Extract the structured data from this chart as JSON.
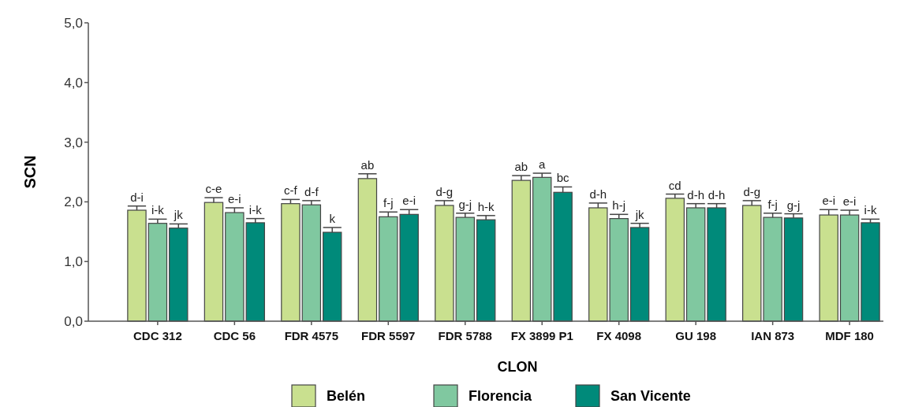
{
  "chart_data": {
    "type": "bar",
    "xlabel": "CLON",
    "ylabel": "SCN",
    "categories": [
      "CDC 312",
      "CDC 56",
      "FDR 4575",
      "FDR 5597",
      "FDR 5788",
      "FX 3899 P1",
      "FX 4098",
      "GU 198",
      "IAN 873",
      "MDF 180"
    ],
    "series": [
      {
        "name": "Belén",
        "color": "#c9e08f",
        "values": [
          1.86,
          1.99,
          1.97,
          2.39,
          1.94,
          2.36,
          1.9,
          2.06,
          1.94,
          1.78
        ],
        "errors": [
          0.07,
          0.08,
          0.07,
          0.08,
          0.08,
          0.08,
          0.08,
          0.07,
          0.08,
          0.09
        ],
        "value_labels": [
          "d-i",
          "c-e",
          "c-f",
          "ab",
          "d-g",
          "ab",
          "d-h",
          "cd",
          "d-g",
          "e-i"
        ]
      },
      {
        "name": "Florencia",
        "color": "#80c8a0",
        "values": [
          1.64,
          1.82,
          1.95,
          1.75,
          1.74,
          2.41,
          1.72,
          1.9,
          1.74,
          1.78
        ],
        "errors": [
          0.07,
          0.08,
          0.07,
          0.08,
          0.07,
          0.07,
          0.07,
          0.07,
          0.07,
          0.08
        ],
        "value_labels": [
          "i-k",
          "e-i",
          "d-f",
          "f-j",
          "g-j",
          "a",
          "h-j",
          "d-h",
          "f-j",
          "e-i"
        ]
      },
      {
        "name": "San Vicente",
        "color": "#008a7a",
        "values": [
          1.56,
          1.65,
          1.49,
          1.79,
          1.7,
          2.16,
          1.57,
          1.9,
          1.73,
          1.65
        ],
        "errors": [
          0.07,
          0.07,
          0.08,
          0.08,
          0.07,
          0.09,
          0.07,
          0.07,
          0.07,
          0.06
        ],
        "value_labels": [
          "jk",
          "i-k",
          "k",
          "e-i",
          "h-k",
          "bc",
          "jk",
          "d-h",
          "g-j",
          "i-k"
        ]
      }
    ],
    "ylim": [
      0,
      5
    ],
    "yticks": [
      {
        "value": 0,
        "label": "0,0"
      },
      {
        "value": 1,
        "label": "1,0"
      },
      {
        "value": 2,
        "label": "2,0"
      },
      {
        "value": 3,
        "label": "3,0"
      },
      {
        "value": 4,
        "label": "4,0"
      },
      {
        "value": 5,
        "label": "5,0"
      }
    ],
    "legend": "bottom"
  }
}
